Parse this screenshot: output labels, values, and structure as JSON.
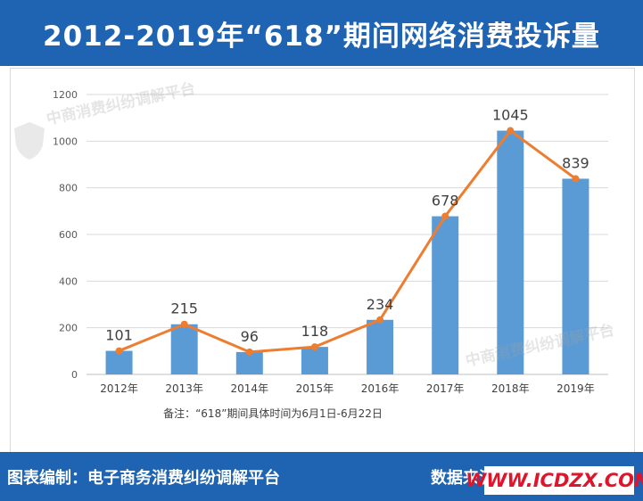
{
  "header": {
    "title": "2012-2019年“618”期间网络消费投诉量"
  },
  "footer": {
    "left": "图表编制：电子商务消费纠纷调解平台",
    "right": "数据来源",
    "site": "WWW.ICDZX.COM"
  },
  "watermark": {
    "text": "中商消费纠纷调解平台"
  },
  "colors": {
    "brand": "#1f63b3",
    "bar": "#5b9bd5",
    "line": "#ed7d31",
    "site_text": "#e0142a"
  },
  "chart_data": {
    "type": "bar",
    "categories": [
      "2012年",
      "2013年",
      "2014年",
      "2015年",
      "2016年",
      "2017年",
      "2018年",
      "2019年"
    ],
    "series": [
      {
        "type": "bar",
        "values": [
          101,
          215,
          96,
          118,
          234,
          678,
          1045,
          839
        ]
      },
      {
        "type": "line",
        "values": [
          101,
          215,
          96,
          118,
          234,
          678,
          1045,
          839
        ]
      }
    ],
    "data_labels": [
      "101",
      "215",
      "96",
      "118",
      "234",
      "678",
      "1045",
      "839"
    ],
    "ylim": [
      0,
      1200
    ],
    "yticks": [
      0,
      200,
      400,
      600,
      800,
      1000,
      1200
    ],
    "grid": true,
    "note": "备注：“618”期间具体时间为6月1日-6月22日"
  }
}
